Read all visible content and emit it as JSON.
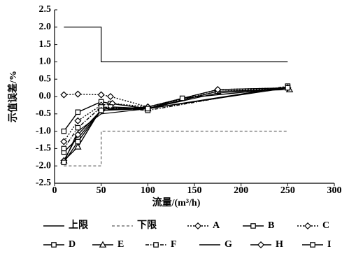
{
  "chart_data": {
    "type": "line",
    "x_label": "流量/(m³/h)",
    "y_label": "示值误差/%",
    "xlim": [
      0,
      300
    ],
    "xticks": [
      0,
      50,
      100,
      150,
      200,
      250,
      300
    ],
    "ylim": [
      -2.5,
      2.5
    ],
    "yticks": [
      2.5,
      {
        "value": 2,
        "label": "2.0"
      },
      1.5,
      {
        "value": 1,
        "label": "1.0"
      },
      0.5,
      {
        "value": 0,
        "label": "0.0"
      },
      -0.5,
      {
        "value": -1,
        "label": "-1.0"
      },
      -1.5,
      {
        "value": -2,
        "label": "-2.0"
      },
      -2.5
    ],
    "series": [
      {
        "name": "上限",
        "color": "#000000",
        "dash": "solid",
        "marker": "none",
        "x": [
          10,
          50,
          50,
          250
        ],
        "values": [
          2,
          2,
          1,
          1
        ]
      },
      {
        "name": "下限",
        "color": "#777777",
        "dash": "dashed",
        "marker": "none",
        "x": [
          10,
          50,
          50,
          250
        ],
        "values": [
          -2,
          -2,
          -1,
          -1
        ]
      },
      {
        "name": "A",
        "color": "#000000",
        "dash": "dotted",
        "marker": "diamond",
        "x": [
          10,
          25,
          50,
          60,
          100,
          175,
          250
        ],
        "values": [
          0.05,
          0.07,
          0.05,
          0.0,
          -0.3,
          0.2,
          0.25
        ]
      },
      {
        "name": "B",
        "color": "#000000",
        "dash": "solid",
        "marker": "square",
        "x": [
          10,
          25,
          50,
          60,
          100,
          250
        ],
        "values": [
          -1.0,
          -0.45,
          -0.15,
          -0.2,
          -0.35,
          0.28
        ]
      },
      {
        "name": "C",
        "color": "#000000",
        "dash": "dotted",
        "marker": "diamond",
        "x": [
          10,
          25,
          50,
          62,
          100,
          175,
          250
        ],
        "values": [
          -1.3,
          -0.7,
          -0.25,
          -0.2,
          -0.3,
          0.15,
          0.25
        ]
      },
      {
        "name": "D",
        "color": "#000000",
        "dash": "solid",
        "marker": "square",
        "x": [
          10,
          25,
          50,
          60,
          100,
          250
        ],
        "values": [
          -1.6,
          -1.2,
          -0.4,
          -0.3,
          -0.35,
          0.25
        ]
      },
      {
        "name": "E",
        "color": "#000000",
        "dash": "solid",
        "marker": "triangle",
        "x": [
          10,
          25,
          50,
          100,
          175,
          252
        ],
        "values": [
          -1.85,
          -1.45,
          -0.35,
          -0.35,
          0.15,
          0.2
        ]
      },
      {
        "name": "F",
        "color": "#000000",
        "dash": "dashdot",
        "marker": "square",
        "x": [
          10,
          25,
          50,
          100,
          250
        ],
        "values": [
          -1.5,
          -0.9,
          -0.3,
          -0.4,
          0.3
        ]
      },
      {
        "name": "G",
        "color": "#000000",
        "dash": "solid",
        "marker": "none",
        "x": [
          10,
          25,
          50,
          100,
          175,
          250
        ],
        "values": [
          -1.9,
          -1.0,
          -0.5,
          -0.35,
          0.1,
          0.25
        ]
      },
      {
        "name": "H",
        "color": "#000000",
        "dash": "solid",
        "marker": "diamond",
        "x": [
          10,
          25,
          50,
          100,
          175,
          250
        ],
        "values": [
          -1.85,
          -1.1,
          -0.4,
          -0.3,
          0.2,
          0.25
        ]
      },
      {
        "name": "I",
        "color": "#000000",
        "dash": "solid",
        "marker": "square",
        "x": [
          10,
          25,
          50,
          100,
          137,
          250
        ],
        "values": [
          -1.9,
          -1.3,
          -0.4,
          -0.35,
          -0.05,
          0.25
        ]
      }
    ]
  }
}
